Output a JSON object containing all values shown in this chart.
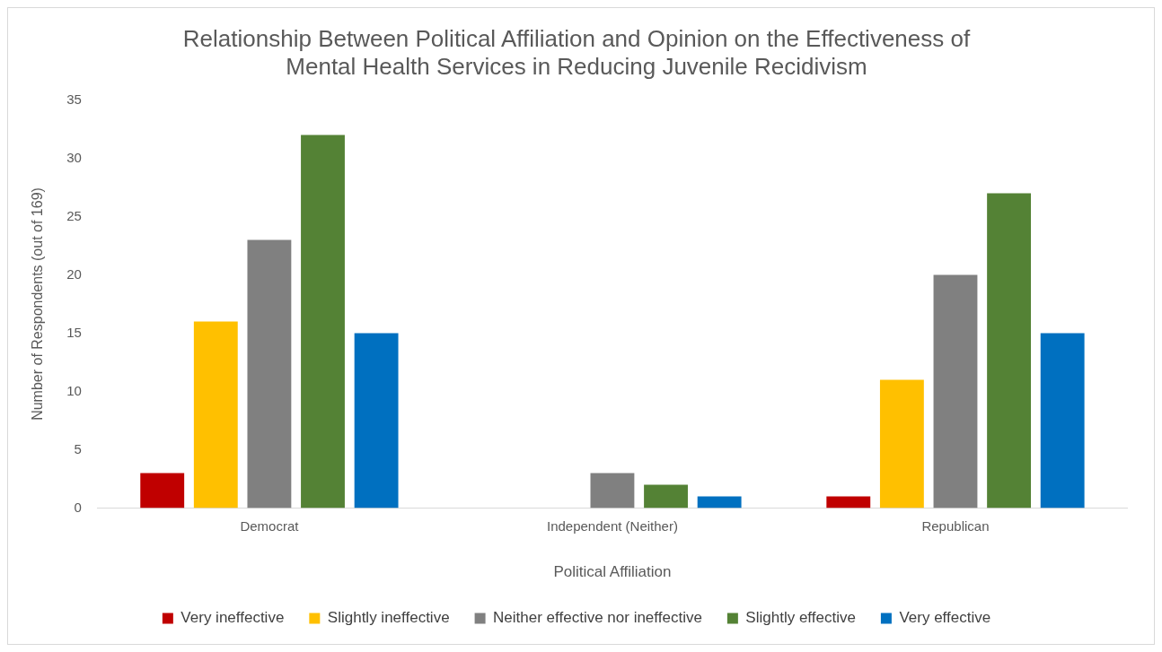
{
  "chart_data": {
    "type": "bar",
    "title": "Relationship Between Political Affiliation and Opinion on the Effectiveness of Mental Health Services in Reducing Juvenile Recidivism",
    "xlabel": "Political Affiliation",
    "ylabel": "Number of Respondents (out of 169)",
    "categories": [
      "Democrat",
      "Independent (Neither)",
      "Republican"
    ],
    "series": [
      {
        "name": "Very ineffective",
        "color": "#c00000",
        "values": [
          3,
          0,
          1
        ]
      },
      {
        "name": "Slightly ineffective",
        "color": "#ffc000",
        "values": [
          16,
          0,
          11
        ]
      },
      {
        "name": "Neither effective nor ineffective",
        "color": "#808080",
        "values": [
          23,
          3,
          20
        ]
      },
      {
        "name": "Slightly effective",
        "color": "#548235",
        "values": [
          32,
          2,
          27
        ]
      },
      {
        "name": "Very effective",
        "color": "#0070c0",
        "values": [
          15,
          1,
          15
        ]
      }
    ],
    "ylim": [
      0,
      35
    ],
    "yticks": [
      0,
      5,
      10,
      15,
      20,
      25,
      30,
      35
    ],
    "grid": false,
    "legend": "bottom"
  }
}
